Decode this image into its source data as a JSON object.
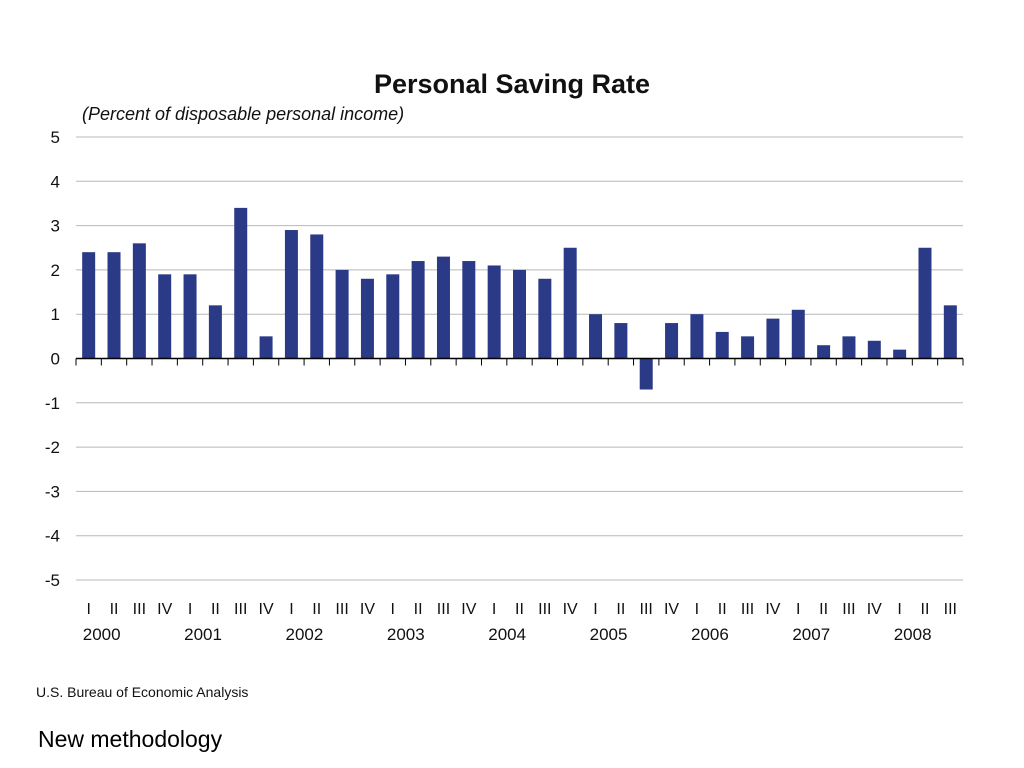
{
  "chart_data": {
    "type": "bar",
    "title": "Personal Saving Rate",
    "subtitle": "(Percent of disposable personal income)",
    "xlabel": "",
    "ylabel": "",
    "ylim": [
      -5,
      5
    ],
    "yticks": [
      "5",
      "4",
      "3",
      "2",
      "1",
      "0",
      "-1",
      "-2",
      "-3",
      "-4",
      "-5"
    ],
    "grid": true,
    "bar_color": "#2b3a87",
    "categories": [
      "2000 I",
      "2000 II",
      "2000 III",
      "2000 IV",
      "2001 I",
      "2001 II",
      "2001 III",
      "2001 IV",
      "2002 I",
      "2002 II",
      "2002 III",
      "2002 IV",
      "2003 I",
      "2003 II",
      "2003 III",
      "2003 IV",
      "2004 I",
      "2004 II",
      "2004 III",
      "2004 IV",
      "2005 I",
      "2005 II",
      "2005 III",
      "2005 IV",
      "2006 I",
      "2006 II",
      "2006 III",
      "2006 IV",
      "2007 I",
      "2007 II",
      "2007 III",
      "2007 IV",
      "2008 I",
      "2008 II",
      "2008 III"
    ],
    "quarter_labels": [
      "I",
      "II",
      "III",
      "IV",
      "I",
      "II",
      "III",
      "IV",
      "I",
      "II",
      "III",
      "IV",
      "I",
      "II",
      "III",
      "IV",
      "I",
      "II",
      "III",
      "IV",
      "I",
      "II",
      "III",
      "IV",
      "I",
      "II",
      "III",
      "IV",
      "I",
      "II",
      "III",
      "IV",
      "I",
      "II",
      "III"
    ],
    "years": [
      "2000",
      "2001",
      "2002",
      "2003",
      "2004",
      "2005",
      "2006",
      "2007",
      "2008"
    ],
    "values": [
      2.4,
      2.4,
      2.6,
      1.9,
      1.9,
      1.2,
      3.4,
      0.5,
      2.9,
      2.8,
      2.0,
      1.8,
      1.9,
      2.2,
      2.3,
      2.2,
      2.1,
      2.0,
      1.8,
      2.5,
      1.0,
      0.8,
      -0.7,
      0.8,
      1.0,
      0.6,
      0.5,
      0.9,
      1.1,
      0.3,
      0.5,
      0.4,
      0.2,
      2.5,
      1.2
    ],
    "source": "U.S. Bureau of Economic Analysis"
  },
  "note": "New methodology"
}
